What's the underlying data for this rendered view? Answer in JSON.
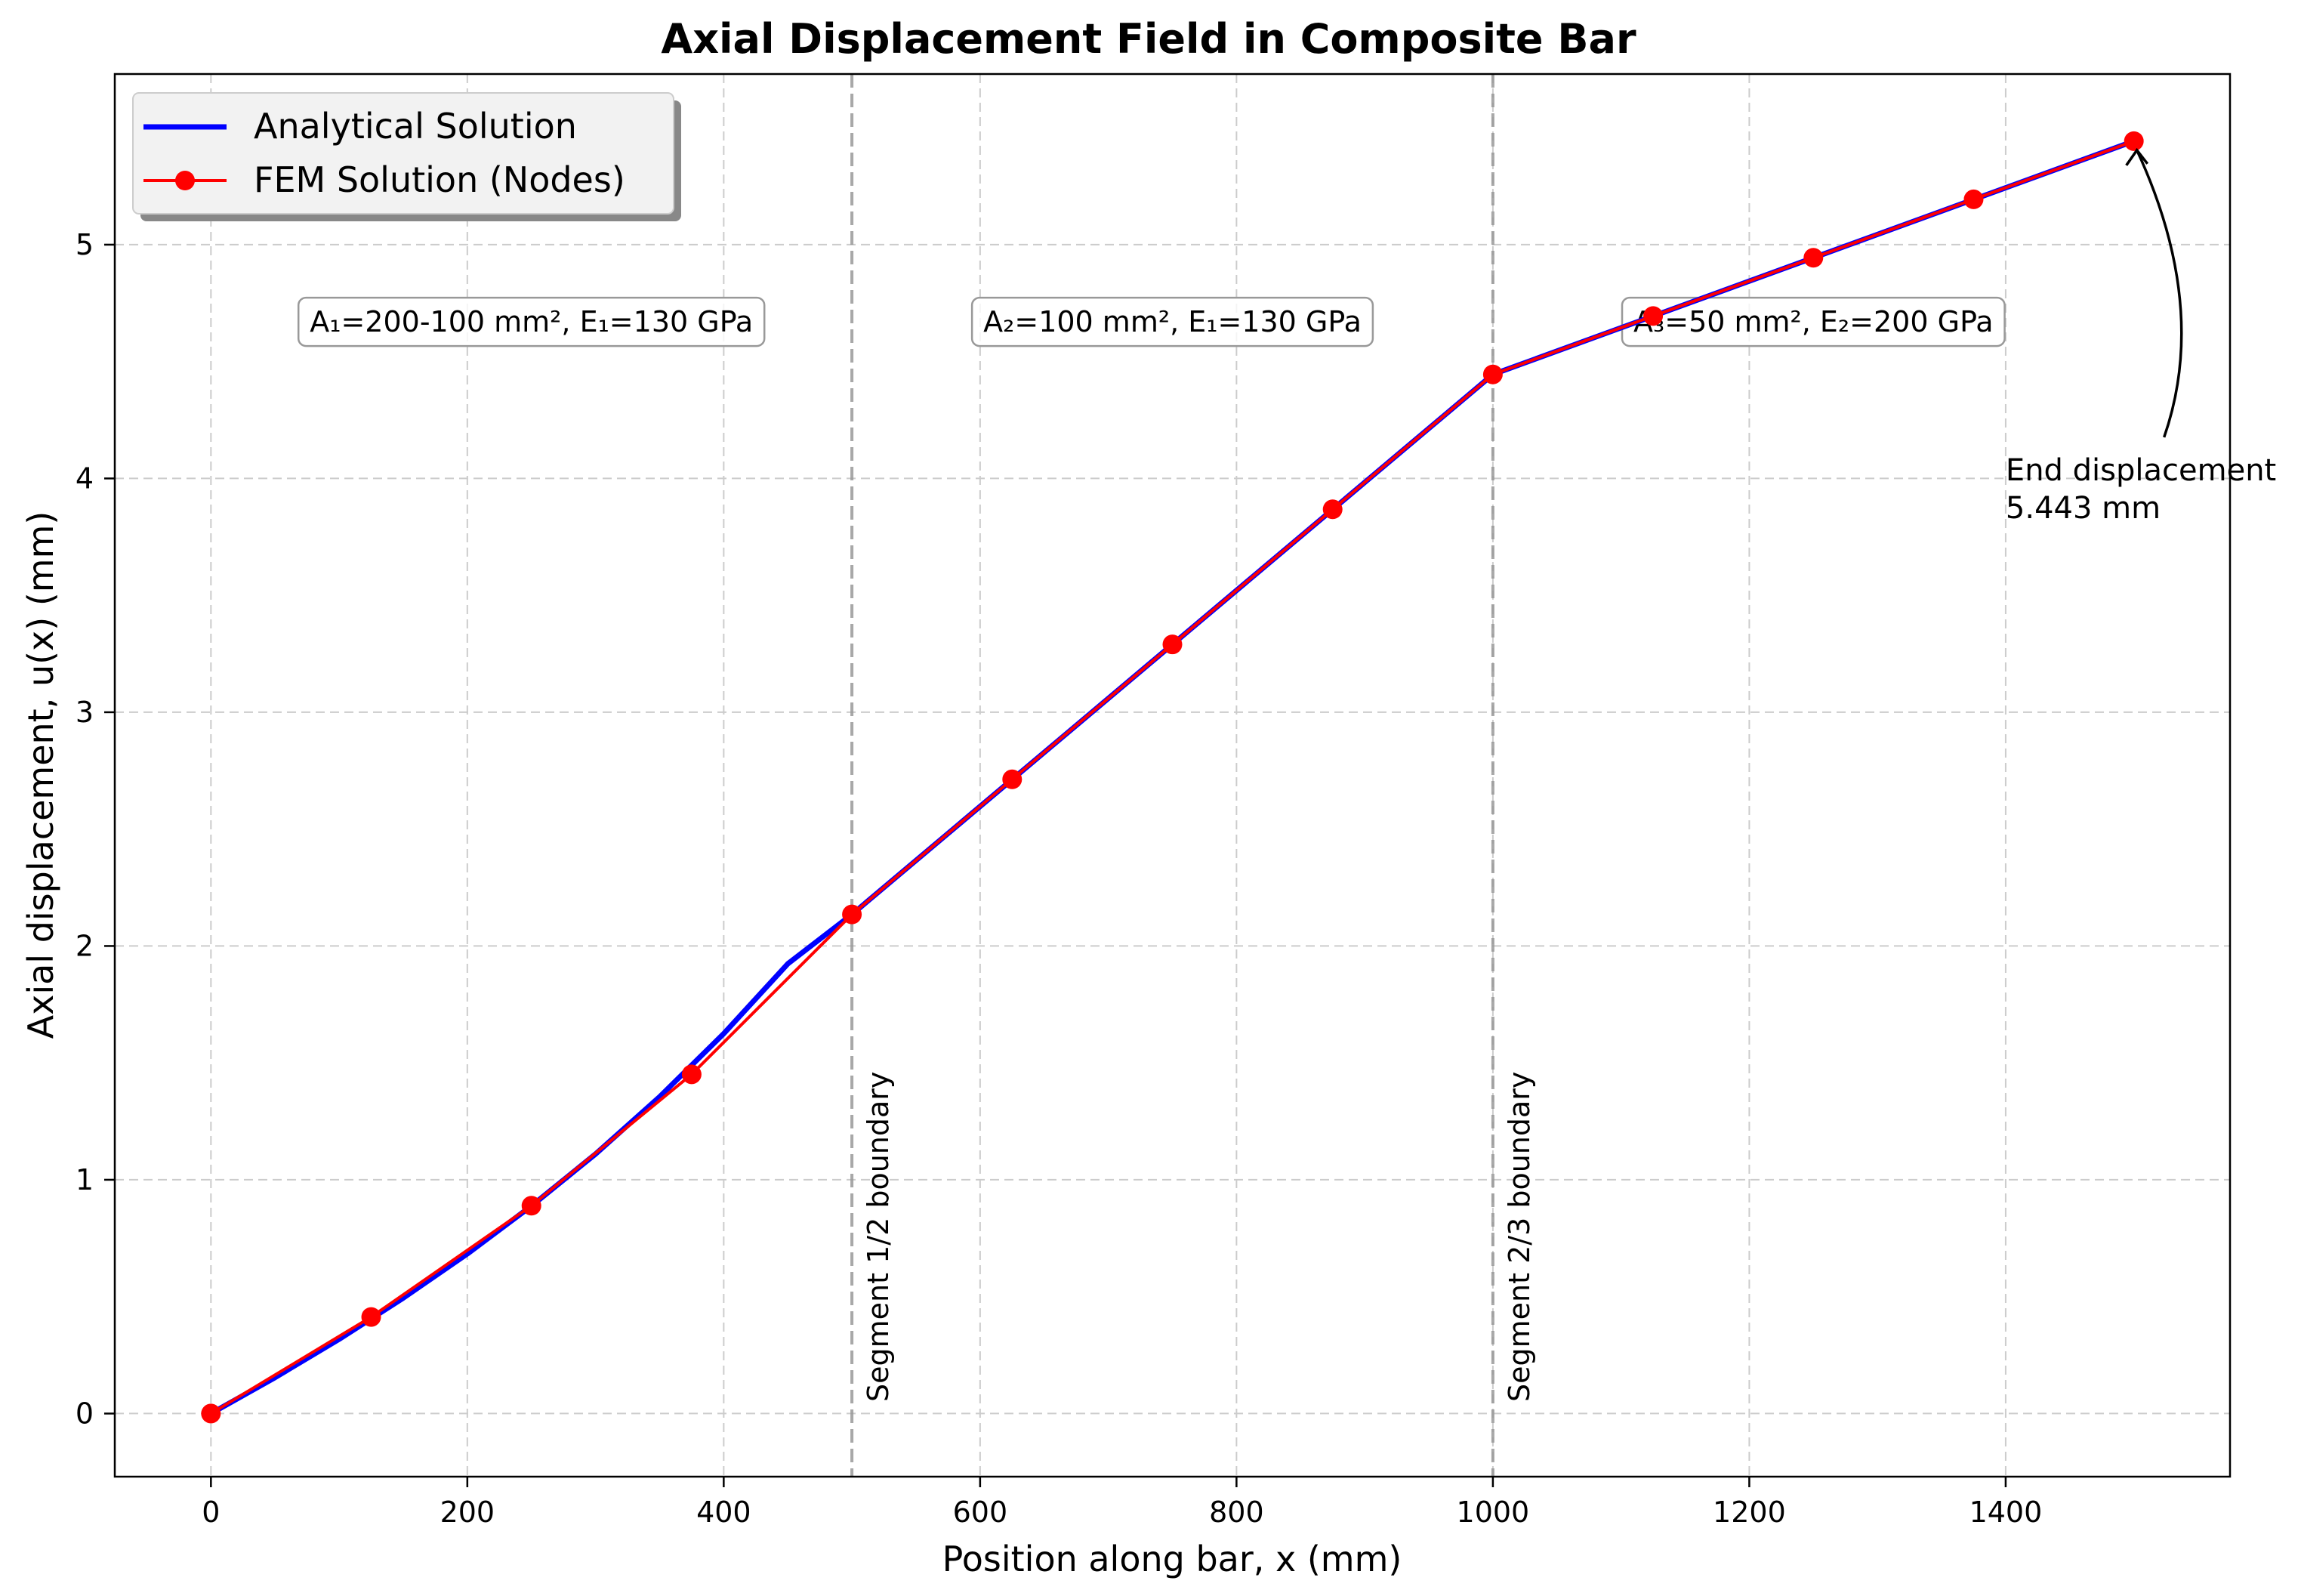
{
  "chart_data": {
    "type": "line",
    "title": "Axial Displacement Field in Composite Bar",
    "xlabel": "Position along bar, x (mm)",
    "ylabel": "Axial displacement, u(x) (mm)",
    "xlim": [
      -75,
      1575
    ],
    "ylim": [
      -0.27,
      5.73
    ],
    "x_ticks": [
      0,
      200,
      400,
      600,
      800,
      1000,
      1200,
      1400
    ],
    "y_ticks": [
      0,
      1,
      2,
      3,
      4,
      5
    ],
    "grid": true,
    "legend_position": "top-left",
    "series": [
      {
        "name": "Analytical Solution",
        "kind": "line",
        "color": "#0000ff",
        "x": [
          0,
          50,
          100,
          150,
          200,
          250,
          300,
          350,
          400,
          450,
          500,
          750,
          1000,
          1500
        ],
        "y": [
          0,
          0.154,
          0.318,
          0.494,
          0.683,
          0.888,
          1.11,
          1.355,
          1.625,
          1.924,
          2.135,
          3.29,
          4.445,
          5.443
        ]
      },
      {
        "name": "FEM Solution (Nodes)",
        "kind": "line+markers",
        "color": "#ff0000",
        "x": [
          0,
          125,
          250,
          375,
          500,
          625,
          750,
          875,
          1000,
          1125,
          1250,
          1375,
          1500
        ],
        "y": [
          0,
          0.413,
          0.889,
          1.451,
          2.135,
          2.713,
          3.29,
          3.868,
          4.445,
          4.695,
          4.944,
          5.194,
          5.443
        ]
      }
    ],
    "boundaries": [
      {
        "x": 500,
        "label": "Segment 1/2 boundary"
      },
      {
        "x": 1000,
        "label": "Segment 2/3 boundary"
      }
    ],
    "region_labels": [
      {
        "text": "A₁=200-100 mm², E₁=130 GPa",
        "x": 250,
        "y": 4.67
      },
      {
        "text": "A₂=100 mm², E₁=130 GPa",
        "x": 750,
        "y": 4.67
      },
      {
        "text": "A₃=50 mm², E₂=200 GPa",
        "x": 1250,
        "y": 4.67
      }
    ],
    "annotation": {
      "line1": "End displacement",
      "line2": "5.443 mm",
      "point": [
        1500,
        5.443
      ],
      "text_at": [
        1400,
        3.95
      ]
    }
  },
  "colors": {
    "analytical": "#0000ff",
    "fem": "#ff0000",
    "grid": "#cccccc",
    "boundary": "#999999",
    "legend_bg": "#f2f2f2"
  }
}
